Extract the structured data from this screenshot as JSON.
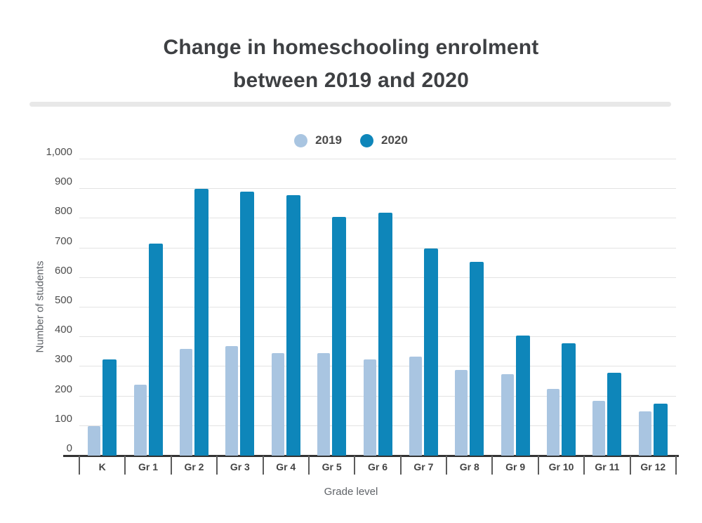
{
  "chart_data": {
    "type": "bar",
    "title": "Change in homeschooling enrolment between 2019 and 2020",
    "title_lines": [
      "Change in homeschooling enrolment",
      "between 2019 and 2020"
    ],
    "xlabel": "Grade level",
    "ylabel": "Number of students",
    "categories": [
      "K",
      "Gr 1",
      "Gr 2",
      "Gr 3",
      "Gr 4",
      "Gr 5",
      "Gr 6",
      "Gr 7",
      "Gr 8",
      "Gr 9",
      "Gr 10",
      "Gr 11",
      "Gr 12"
    ],
    "series": [
      {
        "name": "2019",
        "color": "#a9c5e1",
        "values": [
          100,
          240,
          360,
          370,
          345,
          345,
          325,
          335,
          290,
          275,
          225,
          185,
          150
        ]
      },
      {
        "name": "2020",
        "color": "#0e86ba",
        "values": [
          325,
          715,
          900,
          890,
          880,
          805,
          820,
          700,
          655,
          405,
          380,
          280,
          175
        ]
      }
    ],
    "ylim": [
      0,
      1000
    ],
    "ytick_step": 100,
    "ytick_labels": [
      "0",
      "100",
      "200",
      "300",
      "400",
      "500",
      "600",
      "700",
      "800",
      "900",
      "1,000"
    ],
    "grid": true,
    "legend_position": "top"
  }
}
